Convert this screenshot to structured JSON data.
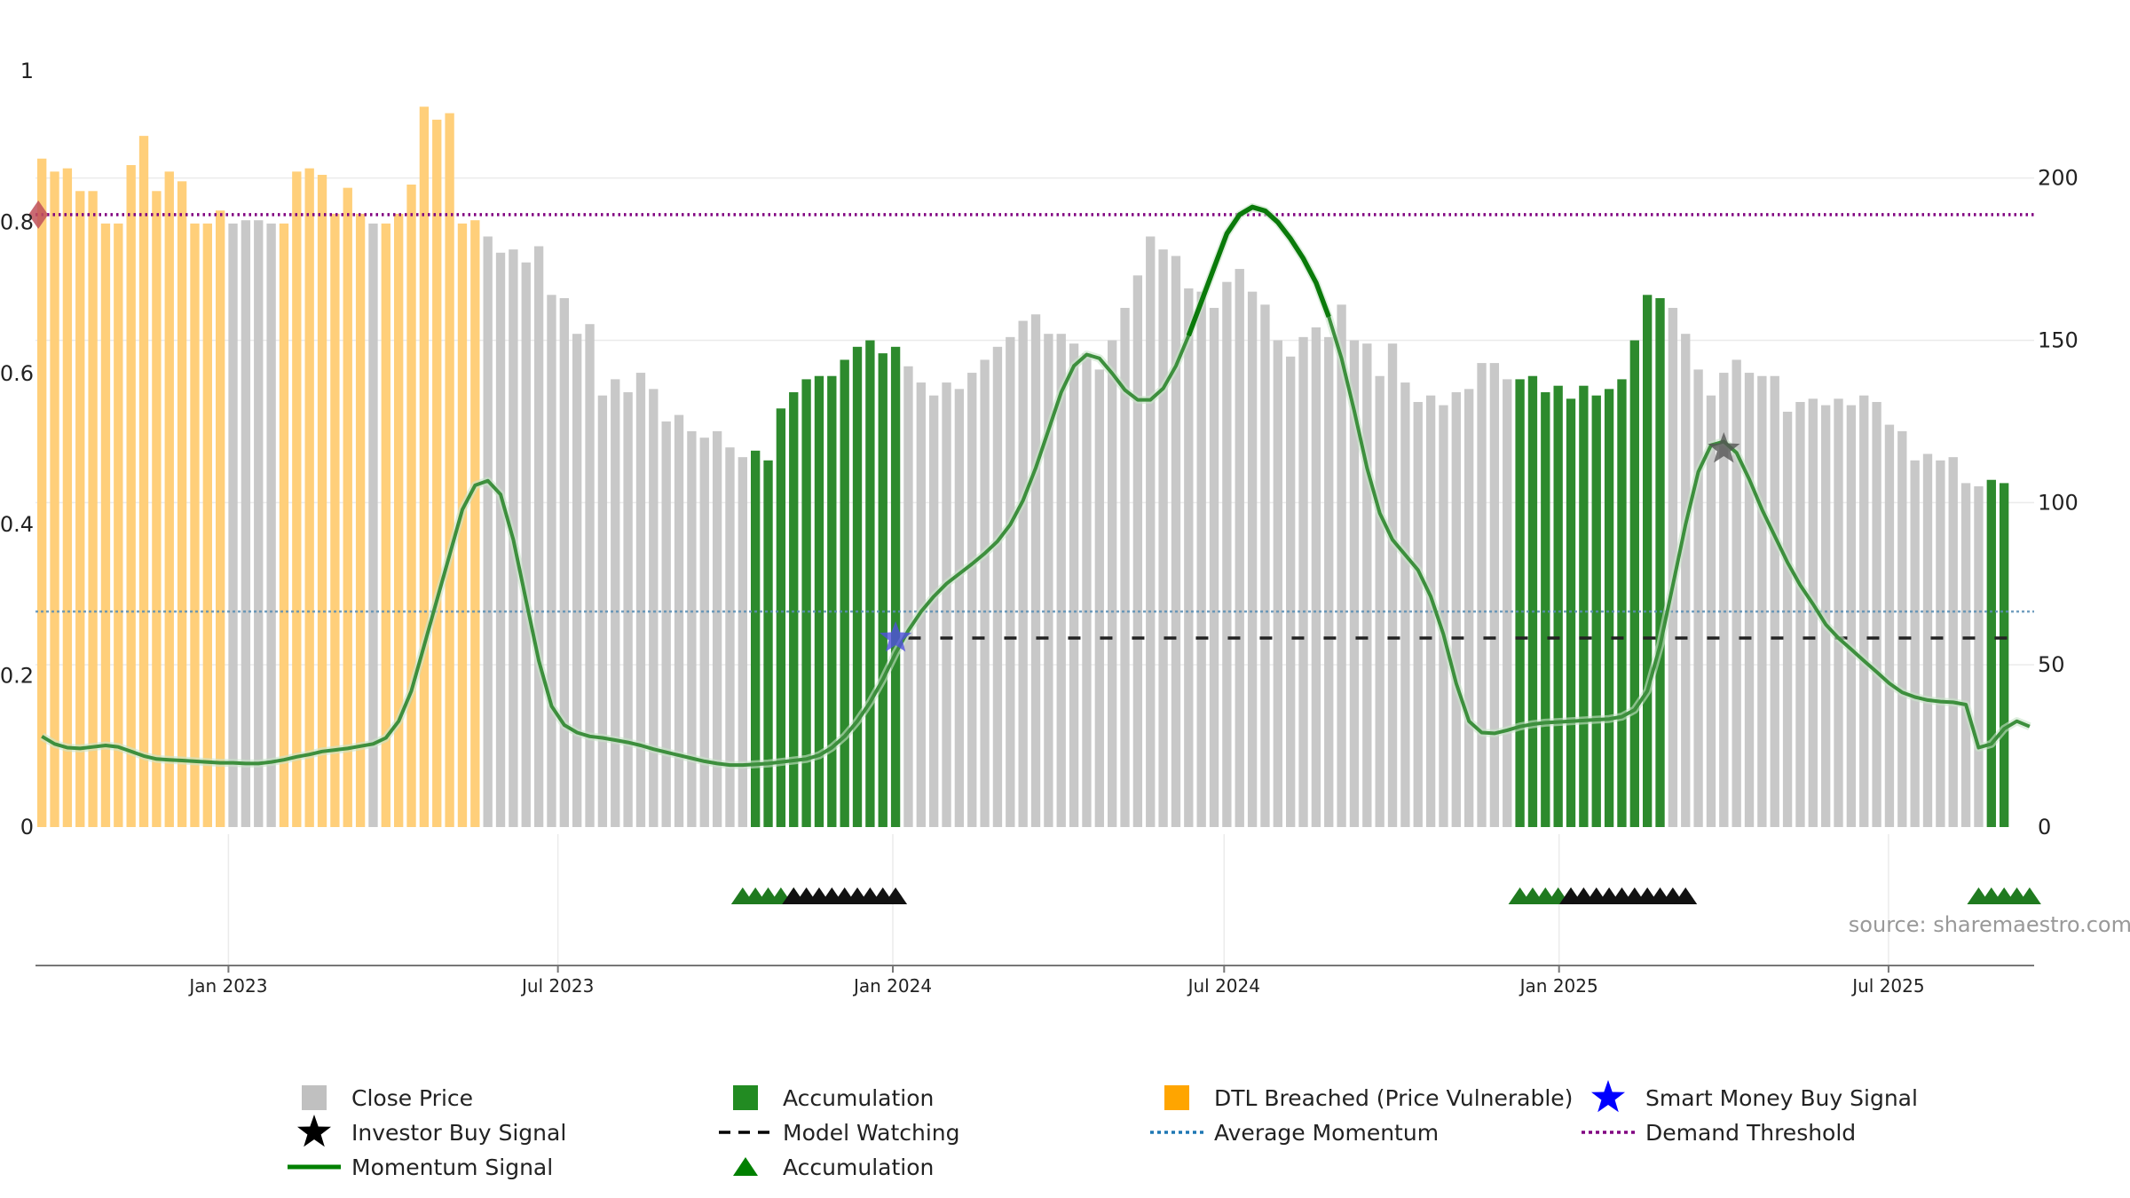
{
  "chart_data": {
    "type": "bar",
    "source": "source: sharemaestro.com",
    "left_axis": {
      "ticks": [
        "0",
        "0.2",
        "0.4",
        "0.6",
        "0.8",
        "1"
      ],
      "range": [
        0,
        1
      ]
    },
    "right_axis": {
      "ticks": [
        "0",
        "50",
        "100",
        "150",
        "200"
      ],
      "range": [
        0,
        233
      ]
    },
    "x_axis": {
      "range": [
        "2022-09-17",
        "2025-09-19"
      ],
      "ticks": [
        {
          "date": "2023-01-01",
          "label": "Jan 2023"
        },
        {
          "date": "2023-07-01",
          "label": "Jul 2023"
        },
        {
          "date": "2024-01-01",
          "label": "Jan 2024"
        },
        {
          "date": "2024-07-01",
          "label": "Jul 2024"
        },
        {
          "date": "2025-01-01",
          "label": "Jan 2025"
        },
        {
          "date": "2025-07-01",
          "label": "Jul 2025"
        }
      ]
    },
    "colors": {
      "close_price": "#c8c8c8",
      "accumulation": "#2d8a2d",
      "dtl_breached": "#ffcf7a",
      "momentum": "#3d8f3d",
      "momentum_strong": "#0a7a0a",
      "average_momentum": "#5a8fb5",
      "demand_threshold": "#800080",
      "model_watching": "#222222",
      "smart_money": "#5050dd",
      "investor": "#555555",
      "demand_marker": "#c0505a"
    },
    "close_price": {
      "start_date": "2022-09-17",
      "step_days": 7,
      "values": [
        206,
        202,
        203,
        196,
        196,
        186,
        186,
        204,
        213,
        196,
        202,
        199,
        186,
        186,
        190,
        186,
        187,
        187,
        186,
        186,
        202,
        203,
        201,
        189,
        197,
        189,
        186,
        186,
        189,
        198,
        222,
        218,
        220,
        186,
        187,
        182,
        177,
        178,
        174,
        179,
        164,
        163,
        152,
        155,
        133,
        138,
        134,
        140,
        135,
        125,
        127,
        122,
        120,
        122,
        117,
        114,
        116,
        113,
        129,
        134,
        138,
        139,
        139,
        144,
        148,
        150,
        146,
        148,
        142,
        137,
        133,
        137,
        135,
        140,
        144,
        148,
        151,
        156,
        158,
        152,
        152,
        149,
        146,
        141,
        150,
        160,
        170,
        182,
        178,
        176,
        166,
        165,
        160,
        168,
        172,
        165,
        161,
        150,
        145,
        151,
        154,
        151,
        161,
        150,
        149,
        139,
        149,
        137,
        131,
        133,
        130,
        134,
        135,
        143,
        143,
        138,
        138,
        139,
        134,
        136,
        132,
        136,
        133,
        135,
        138,
        150,
        164,
        163,
        160,
        152,
        141,
        133,
        140,
        144,
        140,
        139,
        139,
        128,
        131,
        132,
        130,
        132,
        130,
        133,
        131,
        124,
        122,
        113,
        115,
        113,
        114,
        106,
        105,
        107,
        106
      ],
      "end_date": "2025-09-19"
    },
    "accumulation_ranges": [
      [
        56,
        67
      ],
      [
        116,
        127
      ],
      [
        153,
        155
      ]
    ],
    "dtl_breached_ranges": [
      [
        0,
        5
      ],
      [
        6,
        13
      ],
      [
        13,
        14
      ],
      [
        19,
        25
      ],
      [
        27,
        33
      ],
      [
        33,
        34
      ]
    ],
    "momentum_signal": {
      "values": [
        0.12,
        0.11,
        0.105,
        0.104,
        0.106,
        0.108,
        0.106,
        0.1,
        0.094,
        0.09,
        0.089,
        0.088,
        0.087,
        0.086,
        0.085,
        0.085,
        0.084,
        0.084,
        0.086,
        0.089,
        0.093,
        0.096,
        0.1,
        0.102,
        0.104,
        0.107,
        0.11,
        0.118,
        0.14,
        0.18,
        0.24,
        0.3,
        0.36,
        0.42,
        0.452,
        0.458,
        0.44,
        0.38,
        0.3,
        0.22,
        0.16,
        0.135,
        0.125,
        0.12,
        0.118,
        0.115,
        0.112,
        0.108,
        0.103,
        0.099,
        0.095,
        0.091,
        0.087,
        0.084,
        0.082,
        0.082,
        0.083,
        0.084,
        0.086,
        0.088,
        0.09,
        0.095,
        0.105,
        0.12,
        0.14,
        0.165,
        0.195,
        0.23,
        0.26,
        0.285,
        0.305,
        0.322,
        0.335,
        0.348,
        0.362,
        0.378,
        0.4,
        0.432,
        0.475,
        0.525,
        0.575,
        0.61,
        0.625,
        0.62,
        0.6,
        0.578,
        0.565,
        0.565,
        0.58,
        0.61,
        0.65,
        0.695,
        0.74,
        0.785,
        0.81,
        0.82,
        0.815,
        0.8,
        0.778,
        0.752,
        0.72,
        0.675,
        0.62,
        0.55,
        0.475,
        0.415,
        0.38,
        0.36,
        0.34,
        0.305,
        0.255,
        0.19,
        0.14,
        0.125,
        0.124,
        0.128,
        0.133,
        0.136,
        0.138,
        0.139,
        0.14,
        0.141,
        0.142,
        0.143,
        0.146,
        0.155,
        0.18,
        0.24,
        0.32,
        0.4,
        0.47,
        0.505,
        0.51,
        0.495,
        0.46,
        0.42,
        0.385,
        0.35,
        0.32,
        0.295,
        0.268,
        0.25,
        0.235,
        0.22,
        0.205,
        0.19,
        0.178,
        0.172,
        0.168,
        0.166,
        0.165,
        0.162,
        0.105,
        0.11,
        0.13,
        0.14,
        0.133
      ],
      "strong_range": [
        90,
        101
      ]
    },
    "average_momentum": 0.285,
    "demand_threshold": 0.81,
    "demand_marker": {
      "index": 0,
      "value": 0.81
    },
    "smart_money_buy_signal": {
      "index": 67,
      "value": 0.25
    },
    "investor_buy_signal": {
      "index": 132,
      "value": 0.5
    },
    "model_watching": {
      "from_index": 68,
      "to_index": 155,
      "value": 0.25
    },
    "accumulation_triangles": [
      {
        "from_index": 55,
        "to_index": 59,
        "color": "#1f7a1f"
      },
      {
        "from_index": 59,
        "to_index": 67,
        "color": "#111111"
      },
      {
        "from_index": 116,
        "to_index": 120,
        "color": "#1f7a1f"
      },
      {
        "from_index": 120,
        "to_index": 129,
        "color": "#111111"
      },
      {
        "from_index": 152,
        "to_index": 156,
        "color": "#1f7a1f"
      }
    ],
    "legend": [
      {
        "label": "Close Price",
        "type": "square",
        "color": "#c0c0c0"
      },
      {
        "label": "Accumulation",
        "type": "square",
        "color": "#228b22"
      },
      {
        "label": "DTL Breached (Price Vulnerable)",
        "type": "square",
        "color": "#ffa500"
      },
      {
        "label": "Smart Money Buy Signal",
        "type": "star",
        "color": "#0000ff"
      },
      {
        "label": "Investor Buy Signal",
        "type": "star",
        "color": "#000000"
      },
      {
        "label": "Model Watching",
        "type": "dashline",
        "color": "#000000"
      },
      {
        "label": "Average Momentum",
        "type": "dotline",
        "color": "#1f77b4"
      },
      {
        "label": "Demand Threshold",
        "type": "dotline",
        "color": "#800080"
      },
      {
        "label": "Momentum Signal",
        "type": "line",
        "color": "#008000"
      },
      {
        "label": "Accumulation",
        "type": "triangle",
        "color": "#008000"
      }
    ]
  }
}
